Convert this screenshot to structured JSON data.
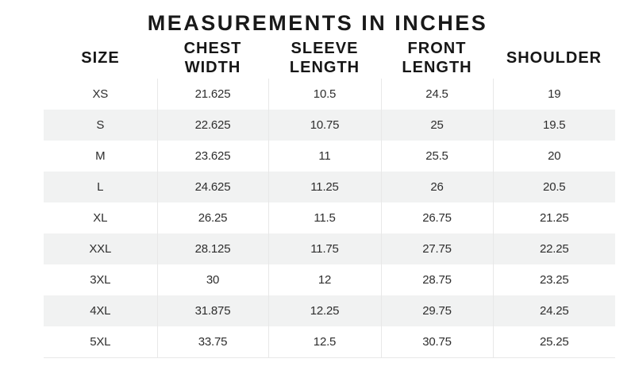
{
  "title": "MEASUREMENTS IN INCHES",
  "colors": {
    "background": "#ffffff",
    "stripe": "#f1f2f2",
    "border": "#e8e8e8",
    "heading_text": "#191919",
    "body_text": "#2e2e2e"
  },
  "table": {
    "columns": [
      "SIZE",
      "CHEST WIDTH",
      "SLEEVE LENGTH",
      "FRONT LENGTH",
      "SHOULDER"
    ],
    "rows": [
      [
        "XS",
        "21.625",
        "10.5",
        "24.5",
        "19"
      ],
      [
        "S",
        "22.625",
        "10.75",
        "25",
        "19.5"
      ],
      [
        "M",
        "23.625",
        "11",
        "25.5",
        "20"
      ],
      [
        "L",
        "24.625",
        "11.25",
        "26",
        "20.5"
      ],
      [
        "XL",
        "26.25",
        "11.5",
        "26.75",
        "21.25"
      ],
      [
        "XXL",
        "28.125",
        "11.75",
        "27.75",
        "22.25"
      ],
      [
        "3XL",
        "30",
        "12",
        "28.75",
        "23.25"
      ],
      [
        "4XL",
        "31.875",
        "12.25",
        "29.75",
        "24.25"
      ],
      [
        "5XL",
        "33.75",
        "12.5",
        "30.75",
        "25.25"
      ]
    ]
  }
}
